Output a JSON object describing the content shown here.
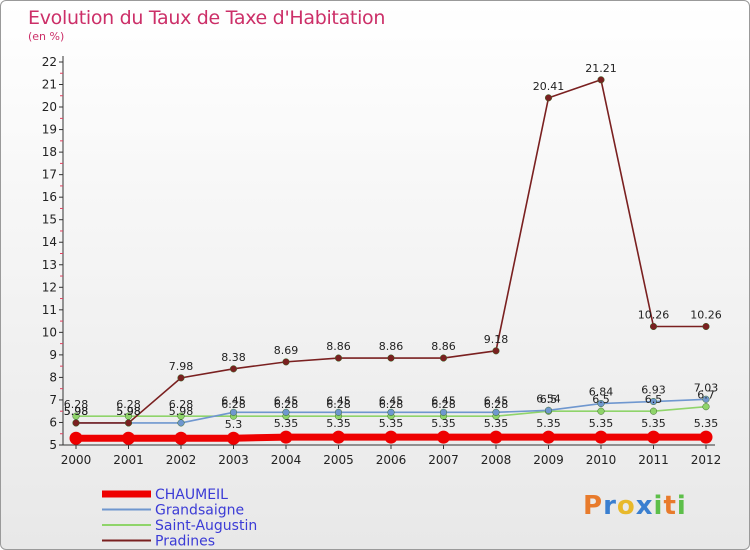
{
  "chart_data": {
    "type": "line",
    "title": "Evolution du Taux de Taxe d'Habitation",
    "ylabel": "(en %)",
    "xlabel": "",
    "ylim": [
      5,
      22
    ],
    "yticks": [
      5,
      6,
      7,
      8,
      9,
      10,
      11,
      12,
      13,
      14,
      15,
      16,
      17,
      18,
      19,
      20,
      21,
      22
    ],
    "categories": [
      "2000",
      "2001",
      "2002",
      "2003",
      "2004",
      "2005",
      "2006",
      "2007",
      "2008",
      "2009",
      "2010",
      "2011",
      "2012"
    ],
    "series": [
      {
        "name": "CHAUMEIL",
        "color": "#ee0000",
        "values": [
          5.3,
          5.3,
          5.3,
          5.3,
          5.35,
          5.35,
          5.35,
          5.35,
          5.35,
          5.35,
          5.35,
          5.35,
          5.35
        ],
        "labels": [
          "",
          "",
          "",
          "5.3",
          "5.35",
          "5.35",
          "5.35",
          "5.35",
          "5.35",
          "5.35",
          "5.35",
          "5.35",
          "5.35"
        ]
      },
      {
        "name": "Grandsaigne",
        "color": "#6f97cf",
        "values": [
          5.98,
          5.98,
          5.98,
          6.45,
          6.45,
          6.45,
          6.45,
          6.45,
          6.45,
          6.54,
          6.84,
          6.93,
          7.03
        ],
        "labels": [
          "5.98",
          "5.98",
          "5.98",
          "6.45",
          "6.45",
          "6.45",
          "6.45",
          "6.45",
          "6.45",
          "6.54",
          "6.84",
          "6.93",
          "7.03"
        ]
      },
      {
        "name": "Saint-Augustin",
        "color": "#8fd46a",
        "values": [
          6.28,
          6.28,
          6.28,
          6.28,
          6.28,
          6.28,
          6.28,
          6.28,
          6.28,
          6.5,
          6.5,
          6.5,
          6.7
        ],
        "labels": [
          "6.28",
          "6.28",
          "6.28",
          "6.28",
          "6.28",
          "6.28",
          "6.28",
          "6.28",
          "6.28",
          "6.5",
          "6.5",
          "6.5",
          "6.7"
        ]
      },
      {
        "name": "Pradines",
        "color": "#7a2020",
        "values": [
          5.98,
          5.98,
          7.98,
          8.38,
          8.69,
          8.86,
          8.86,
          8.86,
          9.18,
          20.41,
          21.21,
          10.26,
          10.26
        ],
        "labels": [
          "5.98",
          "5.98",
          "7.98",
          "8.38",
          "8.69",
          "8.86",
          "8.86",
          "8.86",
          "9.18",
          "20.41",
          "21.21",
          "10.26",
          "10.26"
        ]
      }
    ],
    "legend": "bottom-left"
  },
  "logo": {
    "letters": [
      "P",
      "r",
      "o",
      "x",
      "i",
      "t",
      "i"
    ]
  }
}
